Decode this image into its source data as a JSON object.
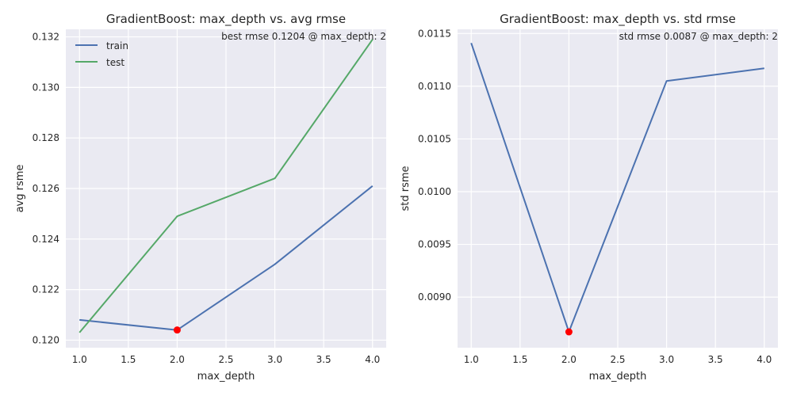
{
  "chart_data": [
    {
      "type": "line",
      "title": "GradientBoost: max_depth vs. avg rmse",
      "xlabel": "max_depth",
      "ylabel": "avg rsme",
      "annotation": "best rmse 0.1204 @ max_depth: 2",
      "x": [
        1.0,
        2.0,
        3.0,
        4.0
      ],
      "xlim": [
        0.86,
        4.14
      ],
      "ylim": [
        0.1197,
        0.1323
      ],
      "xticks": [
        "1.0",
        "1.5",
        "2.0",
        "2.5",
        "3.0",
        "3.5",
        "4.0"
      ],
      "xtick_values": [
        1.0,
        1.5,
        2.0,
        2.5,
        3.0,
        3.5,
        4.0
      ],
      "yticks": [
        "0.120",
        "0.122",
        "0.124",
        "0.126",
        "0.128",
        "0.130",
        "0.132"
      ],
      "ytick_values": [
        0.12,
        0.122,
        0.124,
        0.126,
        0.128,
        0.13,
        0.132
      ],
      "series": [
        {
          "name": "train",
          "color": "#4c72b0",
          "values": [
            0.1208,
            0.1204,
            0.123,
            0.1261
          ]
        },
        {
          "name": "test",
          "color": "#55a868",
          "values": [
            0.1203,
            0.1249,
            0.1264,
            0.1319
          ]
        }
      ],
      "highlight": {
        "x": 2.0,
        "y": 0.1204,
        "color": "#ff0000"
      },
      "legend": "top-left",
      "grid": true
    },
    {
      "type": "line",
      "title": "GradientBoost: max_depth vs. std rmse",
      "xlabel": "max_depth",
      "ylabel": "std rsme",
      "annotation": "std rmse 0.0087 @ max_depth: 2",
      "x": [
        1.0,
        2.0,
        3.0,
        4.0
      ],
      "xlim": [
        0.86,
        4.14
      ],
      "ylim": [
        0.00852,
        0.01154
      ],
      "xticks": [
        "1.0",
        "1.5",
        "2.0",
        "2.5",
        "3.0",
        "3.5",
        "4.0"
      ],
      "xtick_values": [
        1.0,
        1.5,
        2.0,
        2.5,
        3.0,
        3.5,
        4.0
      ],
      "yticks": [
        "0.0090",
        "0.0095",
        "0.0100",
        "0.0105",
        "0.0110",
        "0.0115"
      ],
      "ytick_values": [
        0.009,
        0.0095,
        0.01,
        0.0105,
        0.011,
        0.0115
      ],
      "series": [
        {
          "name": "",
          "color": "#4c72b0",
          "values": [
            0.01141,
            0.00867,
            0.01105,
            0.01117
          ]
        }
      ],
      "highlight": {
        "x": 2.0,
        "y": 0.00867,
        "color": "#ff0000"
      },
      "legend": "none",
      "grid": true
    }
  ]
}
